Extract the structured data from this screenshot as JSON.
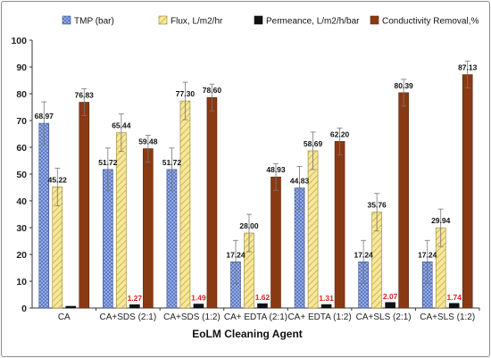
{
  "chart_data": {
    "type": "bar",
    "title": "",
    "xlabel": "EoLM Cleaning Agent",
    "ylabel": "",
    "ylim": [
      0,
      100
    ],
    "yticks": [
      0,
      10,
      20,
      30,
      40,
      50,
      60,
      70,
      80,
      90,
      100
    ],
    "grid": false,
    "legend_position": "top",
    "categories": [
      "CA",
      "CA+SDS (2:1)",
      "CA+SDS (1:2)",
      "CA+ EDTA (2:1)",
      "CA+ EDTA (1:2)",
      "CA+SLS (2:1)",
      "CA+SLS (1:2)"
    ],
    "series": [
      {
        "name": "TMP (bar)",
        "values": [
          68.97,
          51.72,
          51.72,
          17.24,
          44.83,
          17.24,
          17.24
        ],
        "labels": [
          "68.97",
          "51.72",
          "51.72",
          "17.24",
          "44.83",
          "17.24",
          "17.24"
        ],
        "errors": [
          8,
          8,
          8,
          8,
          8,
          8,
          8
        ],
        "color": "#4f6fc0",
        "pattern": "dots"
      },
      {
        "name": "Flux, L/m2/hr",
        "values": [
          45.22,
          65.44,
          77.3,
          28.0,
          58.69,
          35.76,
          29.94
        ],
        "labels": [
          "45.22",
          "65.44",
          "77.30",
          "28.00",
          "58.69",
          "35.76",
          "29.94"
        ],
        "errors": [
          7,
          7,
          7,
          7,
          7,
          7,
          7
        ],
        "color": "#f2de78",
        "pattern": "hatch"
      },
      {
        "name": "Permeance, L/m2/h/bar",
        "values": [
          0.66,
          1.27,
          1.49,
          1.62,
          1.31,
          2.07,
          1.74
        ],
        "labels": [
          "",
          "1.27",
          "1.49",
          "1.62",
          "1.31",
          "2.07",
          "1.74"
        ],
        "errors": [
          0,
          0,
          0,
          0,
          0,
          0,
          0
        ],
        "color": "#111111",
        "pattern": "solid"
      },
      {
        "name": "Conductivity Removal,%",
        "values": [
          76.83,
          59.48,
          78.6,
          48.93,
          62.2,
          80.39,
          87.13
        ],
        "labels": [
          "76.83",
          "59.48",
          "78.60",
          "48.93",
          "62.20",
          "80.39",
          "87.13"
        ],
        "errors": [
          5,
          5,
          5,
          5,
          5,
          5,
          5
        ],
        "color": "#8a3a12",
        "pattern": "solid"
      }
    ]
  }
}
